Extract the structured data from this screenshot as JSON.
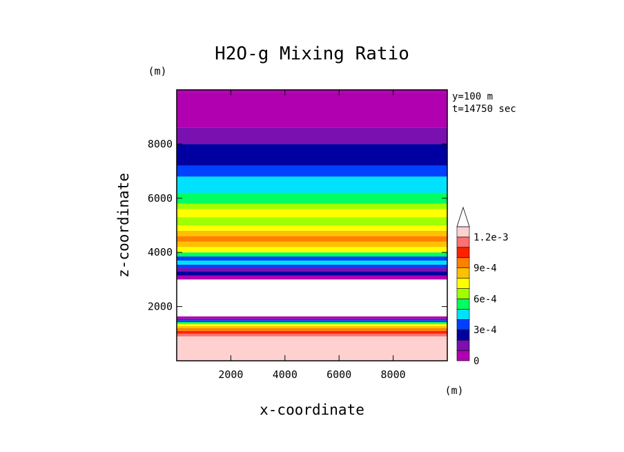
{
  "chart_data": {
    "type": "heatmap",
    "title": "H2O-g Mixing Ratio",
    "xlabel": "x-coordinate",
    "ylabel": "z-coordinate",
    "x_unit": "(m)",
    "y_unit": "(m)",
    "annotations": [
      "y=100 m",
      "t=14750 sec"
    ],
    "xlim": [
      0,
      10000
    ],
    "ylim": [
      0,
      10000
    ],
    "x_ticks": [
      2000,
      4000,
      6000,
      8000
    ],
    "x_tick_labels": [
      "2000",
      "4000",
      "6000",
      "8000"
    ],
    "y_ticks": [
      2000,
      4000,
      6000,
      8000
    ],
    "y_tick_labels": [
      "2000",
      "4000",
      "6000",
      "8000"
    ],
    "colorbar": {
      "levels": [
        "0",
        "",
        "",
        "3e-4",
        "",
        "",
        "6e-4",
        "",
        "",
        "9e-4",
        "",
        "",
        "1.2e-3"
      ],
      "colors": [
        "#b000b0",
        "#7a10b0",
        "#0000a0",
        "#0040ff",
        "#00e0ff",
        "#00ff60",
        "#a0ff00",
        "#ffff00",
        "#ffc000",
        "#ff8000",
        "#ff2000",
        "#ff7070",
        "#ffd0d0"
      ],
      "extend": "max"
    },
    "bands": [
      {
        "z_bottom": 100,
        "z_top": 900,
        "color": "#ffd0d0",
        "value": "1.2e-3+"
      },
      {
        "z_bottom": 900,
        "z_top": 1000,
        "color": "#ff7070",
        "value": "1.1e-3"
      },
      {
        "z_bottom": 1000,
        "z_top": 1100,
        "color": "#ff2000",
        "value": "1.0e-3"
      },
      {
        "z_bottom": 1100,
        "z_top": 1200,
        "color": "#ff8000",
        "value": "9e-4"
      },
      {
        "z_bottom": 1200,
        "z_top": 1280,
        "color": "#ffc000",
        "value": "8e-4"
      },
      {
        "z_bottom": 1280,
        "z_top": 1360,
        "color": "#ffff00",
        "value": "7e-4"
      },
      {
        "z_bottom": 1360,
        "z_top": 1430,
        "color": "#00ff60",
        "value": "6e-4"
      },
      {
        "z_bottom": 1430,
        "z_top": 1500,
        "color": "#0040ff",
        "value": "4e-4"
      },
      {
        "z_bottom": 1500,
        "z_top": 1560,
        "color": "#7a10b0",
        "value": "1e-4"
      },
      {
        "z_bottom": 1560,
        "z_top": 1640,
        "color": "#b000b0",
        "value": "0"
      },
      {
        "z_bottom": 1640,
        "z_top": 3000,
        "color": "#ffffff",
        "value": "none"
      },
      {
        "z_bottom": 3000,
        "z_top": 3150,
        "color": "#b000b0",
        "value": "0"
      },
      {
        "z_bottom": 3150,
        "z_top": 3300,
        "color": "#0000a0",
        "value": "2e-4"
      },
      {
        "z_bottom": 3300,
        "z_top": 3420,
        "color": "#7a10b0",
        "value": "1e-4"
      },
      {
        "z_bottom": 3420,
        "z_top": 3550,
        "color": "#0040ff",
        "value": "3e-4"
      },
      {
        "z_bottom": 3550,
        "z_top": 3700,
        "color": "#00e0ff",
        "value": "5e-4"
      },
      {
        "z_bottom": 3700,
        "z_top": 3850,
        "color": "#0040ff",
        "value": "3e-4"
      },
      {
        "z_bottom": 3850,
        "z_top": 4000,
        "color": "#00ff60",
        "value": "6e-4"
      },
      {
        "z_bottom": 4000,
        "z_top": 4200,
        "color": "#ffff00",
        "value": "7e-4"
      },
      {
        "z_bottom": 4200,
        "z_top": 4400,
        "color": "#ffc000",
        "value": "8e-4"
      },
      {
        "z_bottom": 4400,
        "z_top": 4600,
        "color": "#ff8000",
        "value": "9e-4"
      },
      {
        "z_bottom": 4600,
        "z_top": 4800,
        "color": "#ffc000",
        "value": "8e-4"
      },
      {
        "z_bottom": 4800,
        "z_top": 5000,
        "color": "#ffff00",
        "value": "7e-4"
      },
      {
        "z_bottom": 5000,
        "z_top": 5300,
        "color": "#a0ff00",
        "value": "6.5e-4"
      },
      {
        "z_bottom": 5300,
        "z_top": 5600,
        "color": "#ffff00",
        "value": "7e-4"
      },
      {
        "z_bottom": 5600,
        "z_top": 5800,
        "color": "#a0ff00",
        "value": "6.5e-4"
      },
      {
        "z_bottom": 5800,
        "z_top": 6200,
        "color": "#00ff60",
        "value": "6e-4"
      },
      {
        "z_bottom": 6200,
        "z_top": 6800,
        "color": "#00e0ff",
        "value": "5e-4"
      },
      {
        "z_bottom": 6800,
        "z_top": 7200,
        "color": "#0040ff",
        "value": "3e-4"
      },
      {
        "z_bottom": 7200,
        "z_top": 8000,
        "color": "#0000a0",
        "value": "2e-4"
      },
      {
        "z_bottom": 8000,
        "z_top": 8600,
        "color": "#7a10b0",
        "value": "1e-4"
      },
      {
        "z_bottom": 8600,
        "z_top": 9900,
        "color": "#b000b0",
        "value": "0"
      }
    ]
  }
}
